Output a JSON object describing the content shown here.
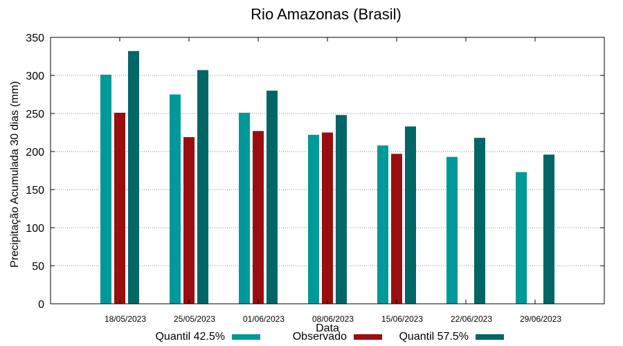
{
  "chart_data": {
    "type": "bar",
    "title": "Rio Amazonas (Brasil)",
    "xlabel": "Data",
    "ylabel": "Precipitação Acumulada 30 dias (mm)",
    "ylim": [
      0,
      350
    ],
    "yticks": [
      0,
      50,
      100,
      150,
      200,
      250,
      300,
      350
    ],
    "grid": true,
    "legend_position": "bottom",
    "categories": [
      "18/05/2023",
      "25/05/2023",
      "01/06/2023",
      "08/06/2023",
      "15/06/2023",
      "22/06/2023",
      "29/06/2023"
    ],
    "series": [
      {
        "name": "Quantil 42.5%",
        "color": "#009999",
        "values": [
          301,
          275,
          251,
          222,
          208,
          193,
          173
        ]
      },
      {
        "name": "Observado",
        "color": "#990f0f",
        "values": [
          251,
          219,
          227,
          225,
          197,
          null,
          null
        ]
      },
      {
        "name": "Quantil 57.5%",
        "color": "#006666",
        "values": [
          332,
          307,
          280,
          248,
          233,
          218,
          196
        ]
      }
    ]
  }
}
